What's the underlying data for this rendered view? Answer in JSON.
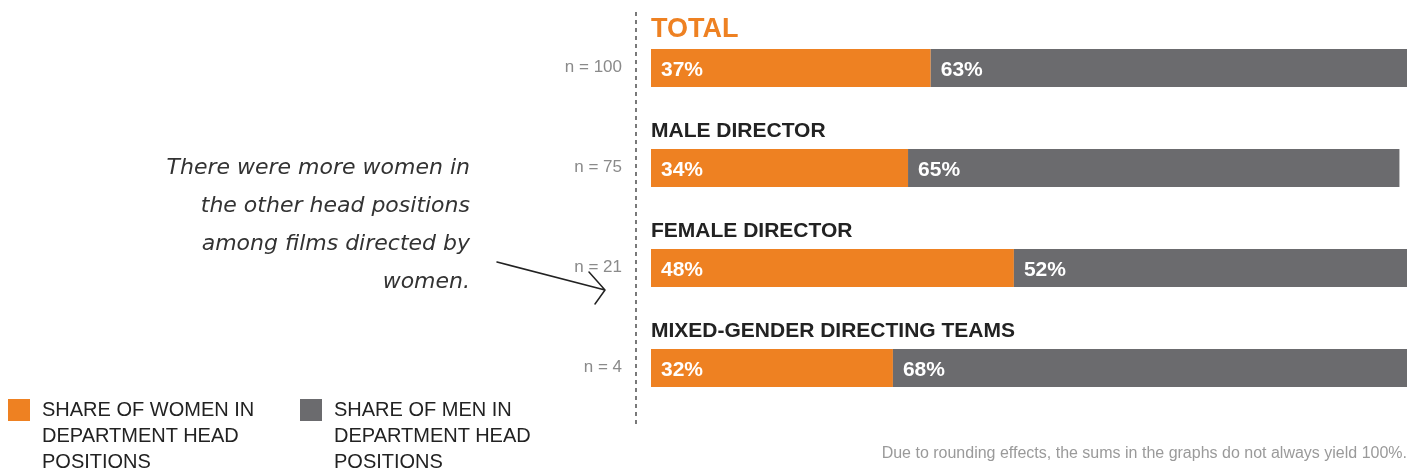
{
  "chart_data": {
    "type": "bar",
    "orientation": "horizontal",
    "stacked": true,
    "data_labels": false,
    "legend": "bottom left",
    "categories": [
      "TOTAL",
      "MALE DIRECTOR",
      "FEMALE DIRECTOR",
      "MIXED-GENDER DIRECTING TEAMS"
    ],
    "series": [
      {
        "name": "SHARE OF WOMEN IN DEPARTMENT HEAD POSITIONS",
        "color": "#ee8122",
        "values": [
          37,
          34,
          48,
          32
        ],
        "value_labels": [
          "37%",
          "34%",
          "48%",
          "32%"
        ]
      },
      {
        "name": "SHARE OF MEN IN DEPARTMENT HEAD POSITIONS",
        "color": "#6b6b6e",
        "values": [
          63,
          65,
          52,
          68
        ],
        "value_labels": [
          "63%",
          "65%",
          "52%",
          "68%"
        ]
      }
    ],
    "annotations": [
      "There were more women in the other head positions among films directed by women.",
      "Due to rounding effects, the sums in the graphs do not always yield 100%.",
      "n = 100",
      "n = 75",
      "n = 21",
      "n = 4"
    ]
  }
}
